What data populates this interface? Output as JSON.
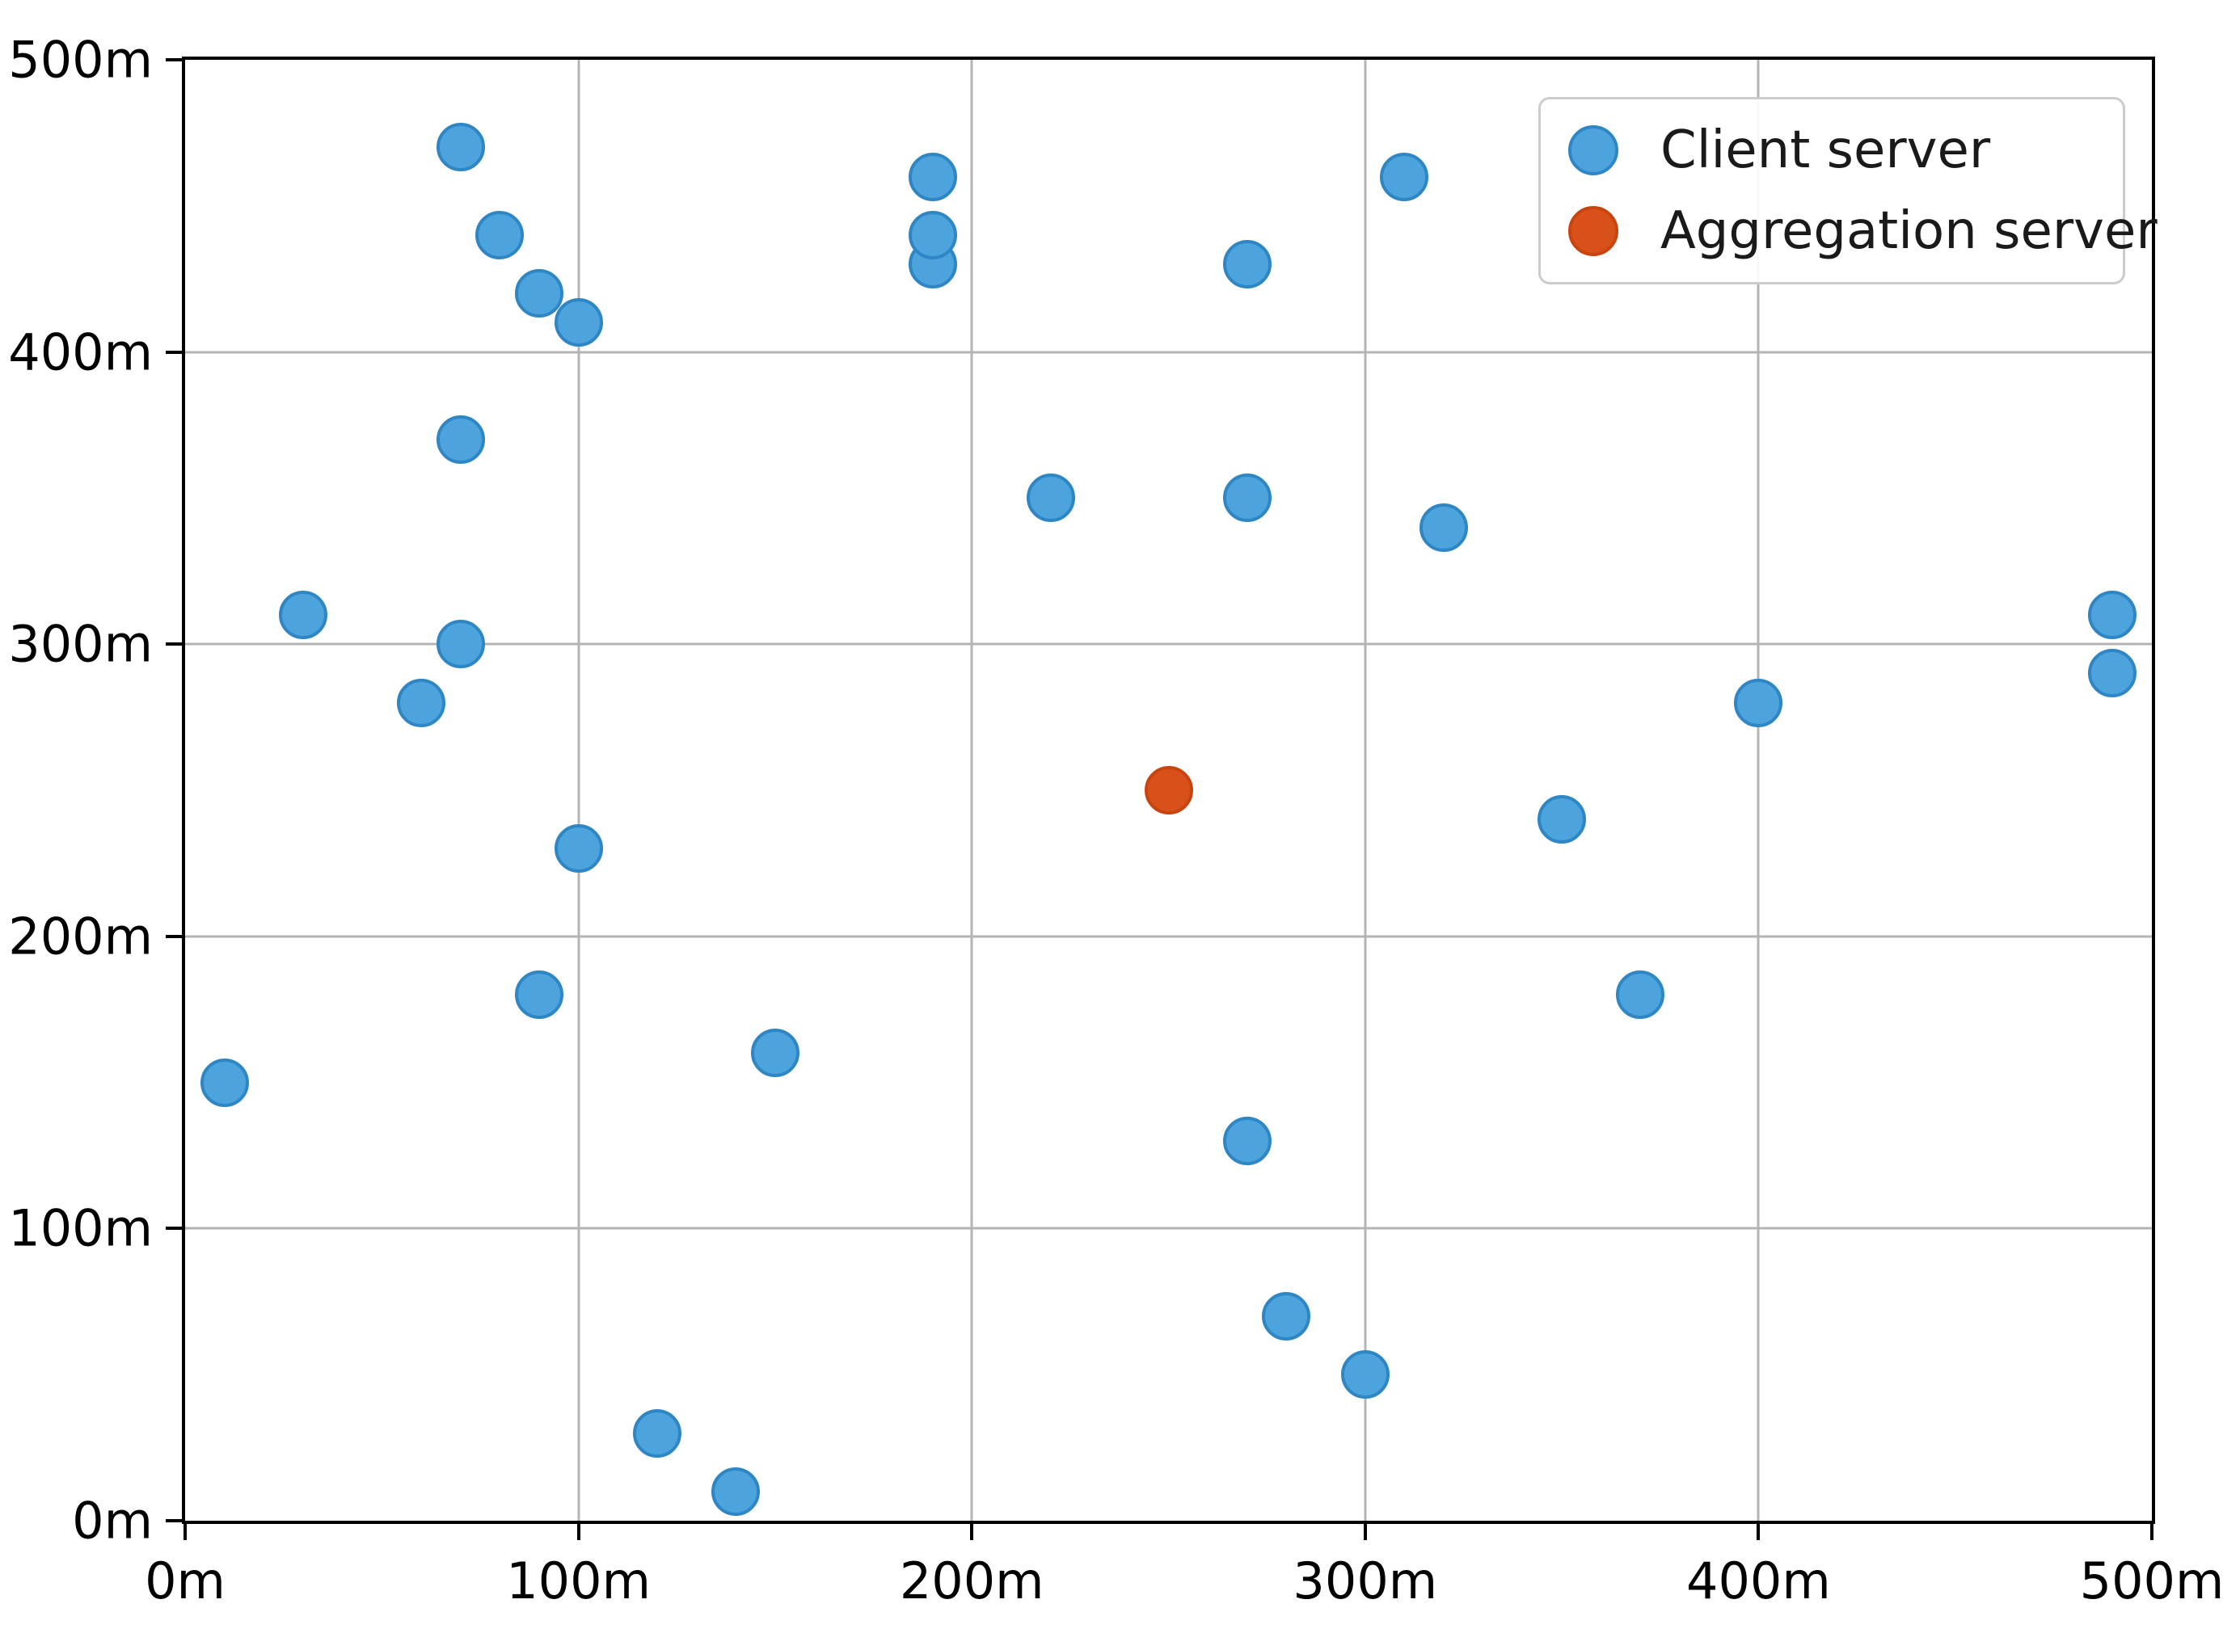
{
  "chart_data": {
    "type": "scatter",
    "title": "",
    "xlabel": "",
    "ylabel": "",
    "xlim": [
      0,
      500
    ],
    "ylim": [
      0,
      500
    ],
    "grid": true,
    "unit_suffix": "m",
    "x_ticks": [
      0,
      100,
      200,
      300,
      400,
      500
    ],
    "y_ticks": [
      0,
      100,
      200,
      300,
      400,
      500
    ],
    "x_tick_labels": [
      "0m",
      "100m",
      "200m",
      "300m",
      "400m",
      "500m"
    ],
    "y_tick_labels": [
      "0m",
      "100m",
      "200m",
      "300m",
      "400m",
      "500m"
    ],
    "legend_position": "upper right",
    "series": [
      {
        "name": "Client server",
        "color": "#4da3dc",
        "edge_color": "#2e86c4",
        "points": [
          [
            10,
            150
          ],
          [
            30,
            310
          ],
          [
            60,
            280
          ],
          [
            70,
            300
          ],
          [
            70,
            370
          ],
          [
            70,
            470
          ],
          [
            80,
            440
          ],
          [
            90,
            180
          ],
          [
            90,
            420
          ],
          [
            100,
            230
          ],
          [
            100,
            410
          ],
          [
            120,
            30
          ],
          [
            140,
            10
          ],
          [
            150,
            160
          ],
          [
            190,
            430
          ],
          [
            190,
            440
          ],
          [
            190,
            460
          ],
          [
            220,
            350
          ],
          [
            270,
            130
          ],
          [
            270,
            350
          ],
          [
            270,
            430
          ],
          [
            280,
            70
          ],
          [
            300,
            50
          ],
          [
            310,
            460
          ],
          [
            320,
            340
          ],
          [
            350,
            240
          ],
          [
            370,
            180
          ],
          [
            400,
            280
          ],
          [
            490,
            290
          ],
          [
            490,
            310
          ]
        ]
      },
      {
        "name": "Aggregation server",
        "color": "#d8511a",
        "edge_color": "#c8450f",
        "points": [
          [
            250,
            250
          ]
        ]
      }
    ]
  }
}
